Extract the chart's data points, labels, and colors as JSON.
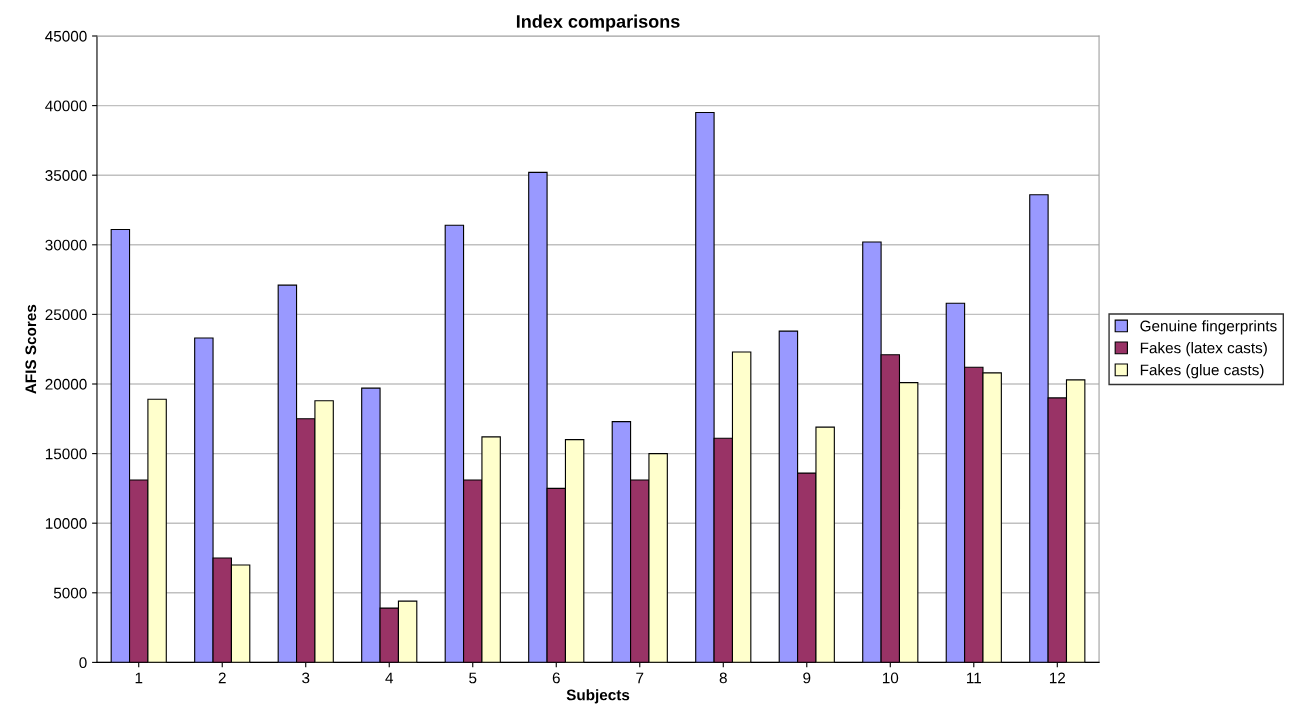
{
  "chart_data": {
    "type": "bar",
    "title": "Index comparisons",
    "xlabel": "Subjects",
    "ylabel": "AFIS Scores",
    "categories": [
      "1",
      "2",
      "3",
      "4",
      "5",
      "6",
      "7",
      "8",
      "9",
      "10",
      "11",
      "12"
    ],
    "series": [
      {
        "name": "Genuine fingerprints",
        "color": "#9999ff",
        "values": [
          31100,
          23300,
          27100,
          19700,
          31400,
          35200,
          17300,
          39500,
          23800,
          30200,
          25800,
          33600
        ]
      },
      {
        "name": "Fakes (latex casts)",
        "color": "#993366",
        "values": [
          13100,
          7500,
          17500,
          3900,
          13100,
          12500,
          13100,
          16100,
          13600,
          22100,
          21200,
          19000
        ]
      },
      {
        "name": "Fakes (glue casts)",
        "color": "#ffffcc",
        "values": [
          18900,
          7000,
          18800,
          4400,
          16200,
          16000,
          15000,
          22300,
          16900,
          20100,
          20800,
          20300
        ]
      }
    ],
    "ylim": [
      0,
      45000
    ],
    "yticks": [
      0,
      5000,
      10000,
      15000,
      20000,
      25000,
      30000,
      35000,
      40000,
      45000
    ],
    "grid": "y",
    "legend": "right"
  }
}
